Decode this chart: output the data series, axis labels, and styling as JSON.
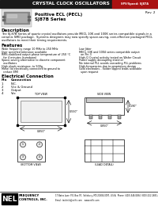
{
  "title": "CRYSTAL CLOCK OSCILLATORS",
  "title_bg": "#1a1a1a",
  "title_color": "#ffffff",
  "badge_bg": "#aa1111",
  "badge_text": "SPS/Speed: SJ87A",
  "rev_text": "Rev. 2",
  "product_title": "Positive ECL (PECL)",
  "product_series": "SJ87B Series",
  "description_title": "Description",
  "description_text1": "The SJ-87B Series of quartz crystal oscillators provide MECL 10K and 100K series compatible signals in a",
  "description_text2": "ceramic SMD package.  Systems designers may now specify space-saving, cost-effective packaged PECL",
  "description_text3": "oscillators to meet their timing requirements.",
  "features_title": "Features",
  "features_left": [
    "Wide frequency range 10 MHz to 250 MHz",
    "User specified tolerance available",
    "RMS-stabilized output phase temperature of 250 °C",
    "  for 4 minutes (turndown)",
    "Space-saving alternative to discrete component",
    "  oscillators",
    "High shock resistance, to 500g",
    "Metal lid electrically connected to ground to",
    "  reduce EMI"
  ],
  "features_right": [
    "Low Jitter",
    "MECL 10K and 1004 series compatible output",
    "  on Pin 3",
    "High-Q Crystal activity tested on Wafer Circuit",
    "Power supply decoupling internal",
    "No internal PLL avoids cascading PLL problems",
    "High-frequencies due to proprietary design",
    "Gold electrodes - Solder dipped leads available",
    "  upon request"
  ],
  "electrical_title": "Electrical Connection",
  "pin_col_header": [
    "Pin",
    "Connection"
  ],
  "pins": [
    [
      "1",
      "N.C."
    ],
    [
      "2",
      "Vcc & Ground"
    ],
    [
      "3",
      "Output"
    ],
    [
      "4",
      "Vcc"
    ]
  ],
  "nel_logo_text": "NEL",
  "footer_address": "17 Bates Lane  P.O. Box 97,  Salisbury, MD 21804-0097, U.S.A.  Phone: (410)-546-0484  (800)-522-2681 / (410)-546-5484",
  "footer_email": "Email: techinfo@nelfc.com    www.nelfc.com",
  "bg_color": "#ffffff",
  "diagram_color": "#000000",
  "dim_text_color": "#333333"
}
